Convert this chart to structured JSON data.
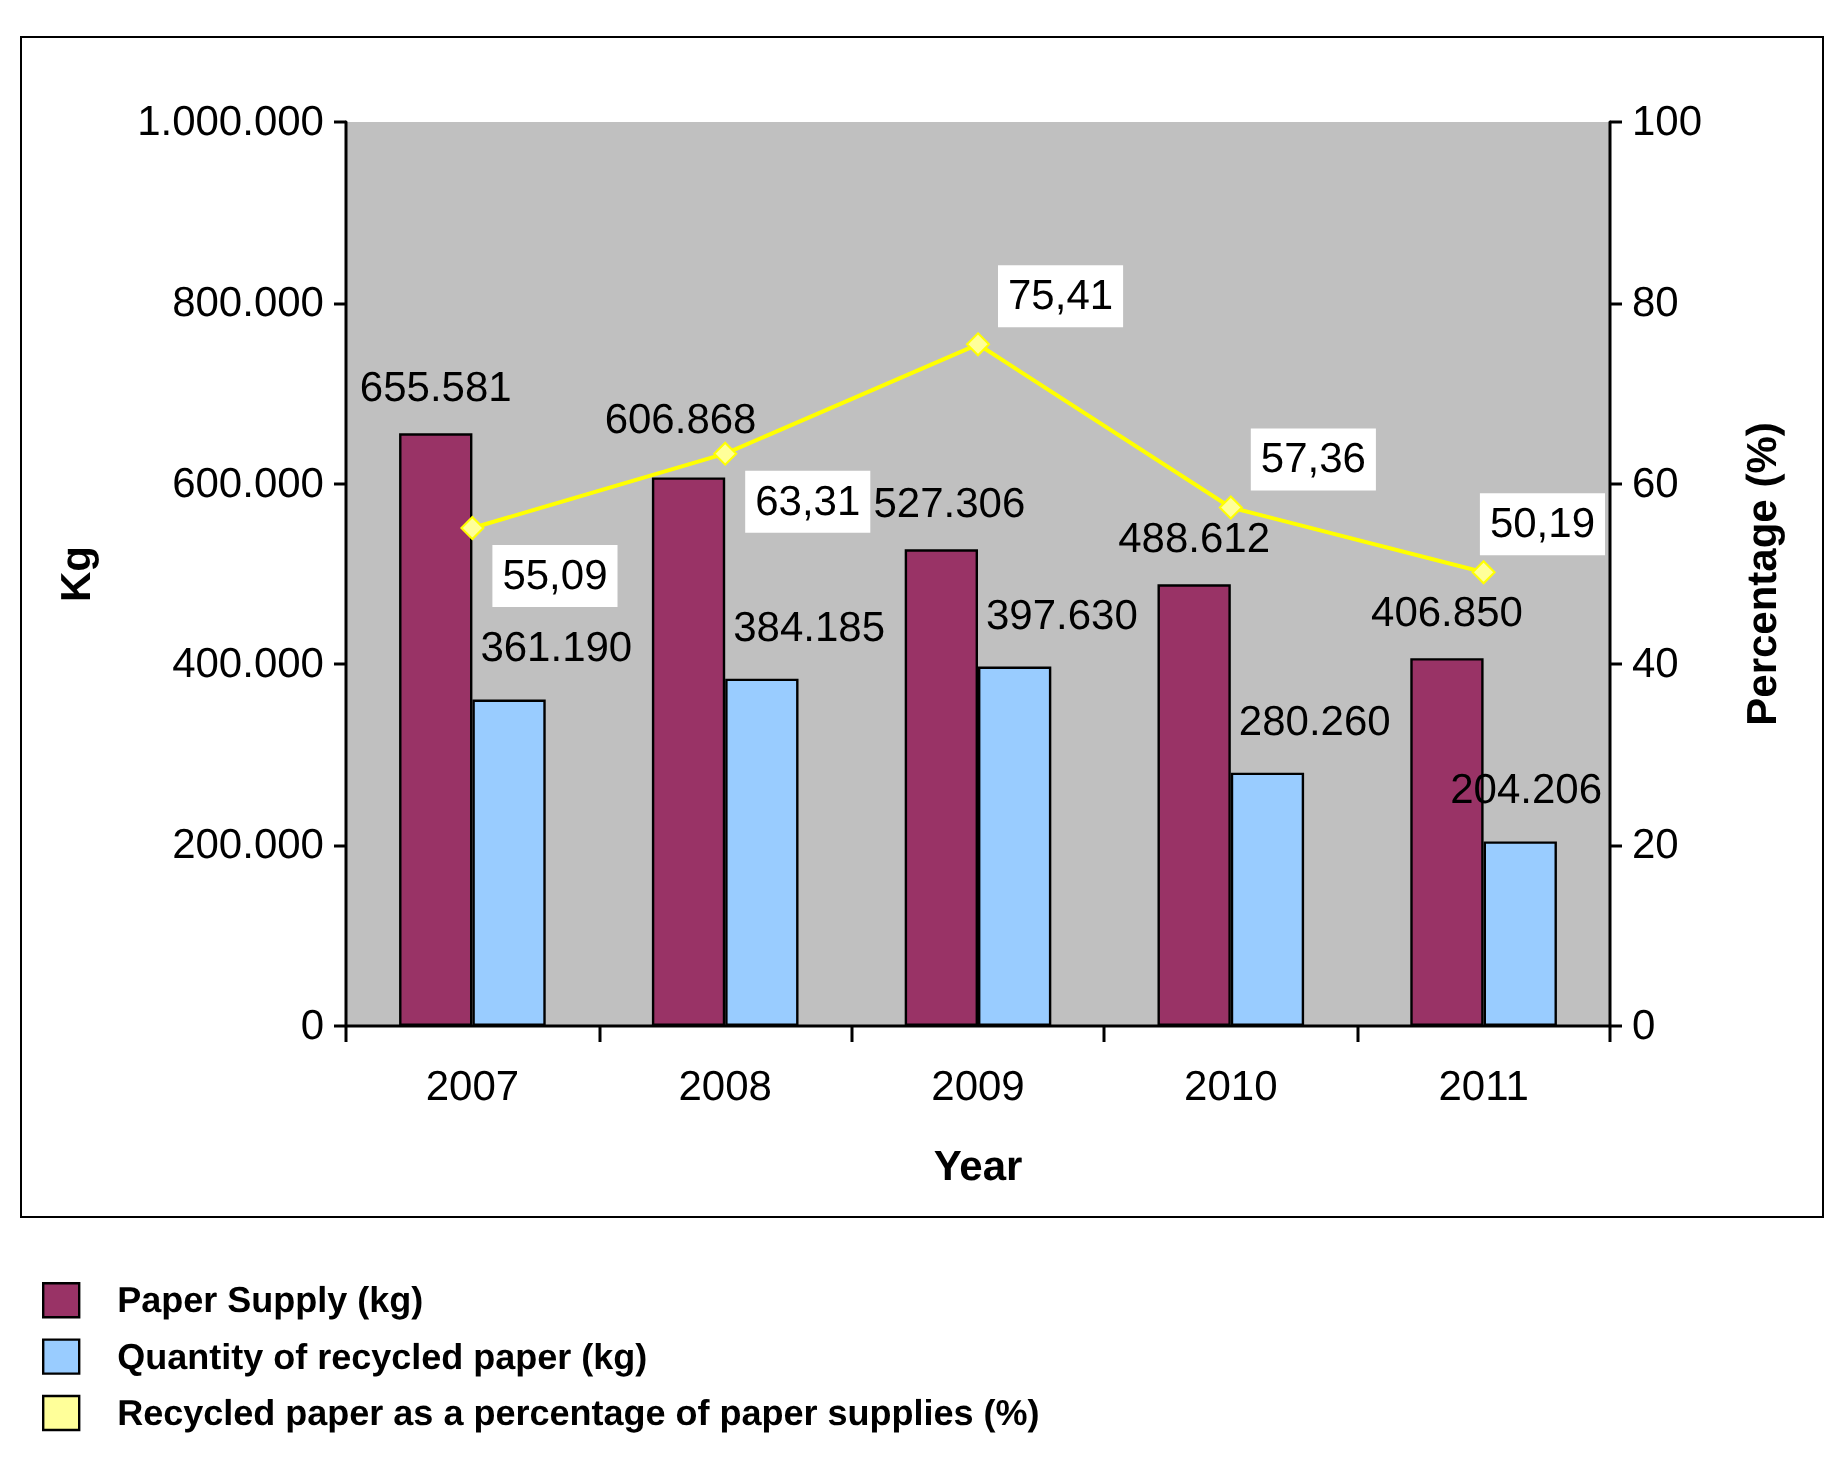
{
  "chart_data": {
    "type": "bar",
    "xlabel": "Year",
    "ylabel": "Kg",
    "y2label": "Percentage (%)",
    "categories": [
      "2007",
      "2008",
      "2009",
      "2010",
      "2011"
    ],
    "series": [
      {
        "name": "Paper Supply (kg)",
        "color": "#993366",
        "values": [
          655581,
          606868,
          527306,
          488612,
          406850
        ],
        "value_labels": [
          "655.581",
          "606.868",
          "527.306",
          "488.612",
          "406.850"
        ]
      },
      {
        "name": "Quantity of recycled paper (kg)",
        "color": "#99ccff",
        "values": [
          361190,
          384185,
          397630,
          280260,
          204206
        ],
        "value_labels": [
          "361.190",
          "384.185",
          "397.630",
          "280.260",
          "204.206"
        ]
      },
      {
        "name": "Recycled paper as a percentage of paper supplies (%)",
        "type": "line",
        "axis": "y2",
        "color": "#ffff00",
        "values": [
          55.09,
          63.31,
          75.41,
          57.36,
          50.19
        ],
        "value_labels": [
          "55,09",
          "63,31",
          "75,41",
          "57,36",
          "50,19"
        ]
      }
    ],
    "ylim": [
      0,
      1000000
    ],
    "yticks": [
      0,
      {
        "value": 200000,
        "label": "200.000"
      },
      {
        "value": 400000,
        "label": "400.000"
      },
      {
        "value": 600000,
        "label": "600.000"
      },
      {
        "value": 800000,
        "label": "800.000"
      },
      {
        "value": 1000000,
        "label": "1.000.000"
      }
    ],
    "y2lim": [
      0,
      100
    ],
    "y2ticks": [
      0,
      20,
      40,
      60,
      80,
      100
    ],
    "grid": false,
    "legend": "bottom left",
    "marker": "diamond",
    "line_style": "solid"
  }
}
